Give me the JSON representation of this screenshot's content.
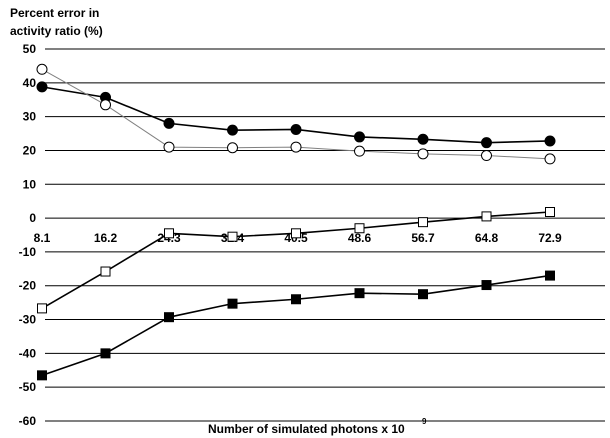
{
  "chart_data": {
    "type": "line",
    "title_lines": [
      "Percent error in",
      "activity ratio (%)"
    ],
    "xlabel": "Number of simulated photons x 10",
    "xlabel_superscript": "9",
    "categories": [
      "8.1",
      "16.2",
      "24.3",
      "32.4",
      "40.5",
      "48.6",
      "56.7",
      "64.8",
      "72.9"
    ],
    "ylim": [
      -60,
      50
    ],
    "yticks": [
      50,
      40,
      30,
      20,
      10,
      0,
      -10,
      -20,
      -30,
      -40,
      -50,
      -60
    ],
    "grid": true,
    "series": [
      {
        "marker": "filled-circle",
        "color": "#000000",
        "values": [
          38.8,
          35.7,
          28.0,
          26.0,
          26.2,
          24.0,
          23.3,
          22.3,
          22.8
        ]
      },
      {
        "marker": "open-circle",
        "color": "#808080",
        "values": [
          44.0,
          33.5,
          21.0,
          20.8,
          21.0,
          19.8,
          19.0,
          18.5,
          17.5
        ]
      },
      {
        "marker": "open-square",
        "color": "#000000",
        "values": [
          -26.7,
          -15.8,
          -4.5,
          -5.5,
          -4.5,
          -3.0,
          -1.2,
          0.5,
          1.8
        ]
      },
      {
        "marker": "filled-square",
        "color": "#000000",
        "values": [
          -46.5,
          -40.0,
          -29.3,
          -25.3,
          -24.0,
          -22.2,
          -22.5,
          -19.8,
          -17.0
        ]
      }
    ]
  }
}
